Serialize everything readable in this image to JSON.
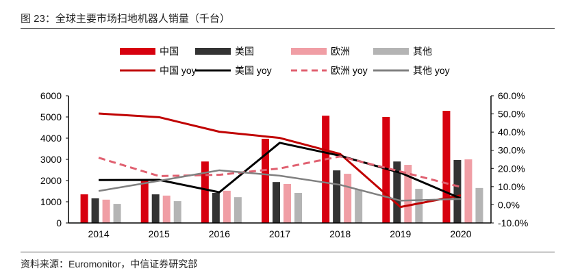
{
  "title": "图 23：全球主要市场扫地机器人销量（千台）",
  "source": "资料来源：Euromonitor，中信证券研究部",
  "chart_data": {
    "type": "bar+line",
    "title": "图 23：全球主要市场扫地机器人销量（千台）",
    "categories": [
      "2014",
      "2015",
      "2016",
      "2017",
      "2018",
      "2019",
      "2020"
    ],
    "y_left": {
      "range": [
        0,
        6000
      ],
      "ticks": [
        "0",
        "1000",
        "2000",
        "3000",
        "4000",
        "5000",
        "6000"
      ]
    },
    "y_right": {
      "range": [
        -10,
        60
      ],
      "ticks": [
        "-10.0%",
        "0.0%",
        "10.0%",
        "20.0%",
        "30.0%",
        "40.0%",
        "50.0%",
        "60.0%"
      ]
    },
    "grid": false,
    "legend_placement": "top",
    "bar_series": [
      {
        "name": "中国",
        "color": "#d7000f",
        "values": [
          1350,
          2030,
          2900,
          3970,
          5060,
          5000,
          5290
        ]
      },
      {
        "name": "美国",
        "color": "#333333",
        "values": [
          1160,
          1350,
          1420,
          1930,
          2480,
          2900,
          2970
        ]
      },
      {
        "name": "欧洲",
        "color": "#f09ea5",
        "values": [
          1100,
          1290,
          1520,
          1840,
          2320,
          2740,
          3000
        ]
      },
      {
        "name": "其他",
        "color": "#b4b4b4",
        "values": [
          900,
          1030,
          1220,
          1420,
          1580,
          1610,
          1650
        ]
      }
    ],
    "line_series": [
      {
        "name": "中国 yoy",
        "color": "#c00000",
        "dash": false,
        "values": [
          50.2,
          48.2,
          40.2,
          36.8,
          28.0,
          -1.2,
          5.2
        ]
      },
      {
        "name": "美国 yoy",
        "color": "#000000",
        "dash": false,
        "values": [
          13.6,
          13.7,
          6.9,
          34.1,
          27.0,
          17.6,
          3.5
        ]
      },
      {
        "name": "欧洲 yoy",
        "color": "#e06070",
        "dash": true,
        "values": [
          25.9,
          15.8,
          16.5,
          20.0,
          26.6,
          18.3,
          9.8
        ]
      },
      {
        "name": "其他 yoy",
        "color": "#808080",
        "dash": false,
        "values": [
          7.6,
          13.2,
          19.0,
          16.0,
          11.0,
          2.3,
          3.2
        ]
      }
    ]
  }
}
